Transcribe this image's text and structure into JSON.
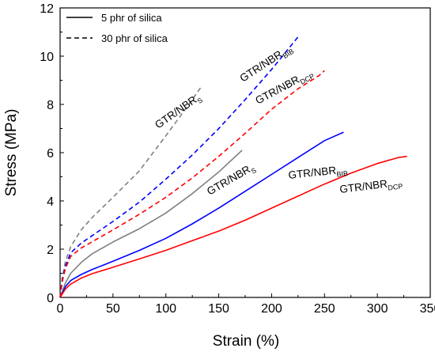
{
  "chart_data": {
    "type": "line",
    "title": "",
    "xlabel": "Strain (%)",
    "ylabel": "Stress (MPa)",
    "xlim": [
      0,
      350
    ],
    "ylim": [
      0,
      12
    ],
    "x_ticks": [
      "0",
      "50",
      "100",
      "150",
      "200",
      "250",
      "300",
      "350"
    ],
    "y_ticks": [
      "0",
      "2",
      "4",
      "6",
      "8",
      "10",
      "12"
    ],
    "grid": false,
    "legend_position": "top-left",
    "legend": [
      {
        "label": "5 phr of silica",
        "linestyle": "solid"
      },
      {
        "label": "30 phr of silica",
        "linestyle": "dashed"
      }
    ],
    "annotations": [
      {
        "base": "GTR/NBR",
        "sub": "S",
        "series": "solid-gray"
      },
      {
        "base": "GTR/NBR",
        "sub": "BIB",
        "series": "solid-blue"
      },
      {
        "base": "GTR/NBR",
        "sub": "DCP",
        "series": "solid-red"
      },
      {
        "base": "GTR/NBR",
        "sub": "S",
        "series": "dashed-gray"
      },
      {
        "base": "GTR/NBR",
        "sub": "BIB",
        "series": "dashed-blue"
      },
      {
        "base": "GTR/NBR",
        "sub": "DCP",
        "series": "dashed-red"
      }
    ],
    "series": [
      {
        "id": "solid-gray",
        "color": "#808080",
        "linestyle": "solid",
        "x": [
          0,
          5,
          10,
          20,
          30,
          50,
          75,
          100,
          125,
          150,
          172
        ],
        "y": [
          0,
          0.6,
          1.0,
          1.45,
          1.8,
          2.3,
          2.85,
          3.5,
          4.3,
          5.2,
          6.1
        ]
      },
      {
        "id": "solid-blue",
        "color": "#0000ff",
        "linestyle": "solid",
        "x": [
          0,
          5,
          10,
          20,
          30,
          50,
          75,
          100,
          125,
          150,
          175,
          200,
          225,
          250,
          268
        ],
        "y": [
          0,
          0.45,
          0.7,
          0.95,
          1.15,
          1.5,
          1.95,
          2.45,
          3.05,
          3.7,
          4.4,
          5.1,
          5.8,
          6.5,
          6.85
        ]
      },
      {
        "id": "solid-red",
        "color": "#ff0000",
        "linestyle": "solid",
        "x": [
          0,
          5,
          10,
          20,
          30,
          50,
          75,
          100,
          125,
          150,
          175,
          200,
          225,
          250,
          275,
          300,
          320,
          328
        ],
        "y": [
          0,
          0.35,
          0.55,
          0.8,
          0.98,
          1.25,
          1.6,
          1.95,
          2.35,
          2.75,
          3.2,
          3.7,
          4.2,
          4.7,
          5.15,
          5.55,
          5.8,
          5.85
        ]
      },
      {
        "id": "dashed-gray",
        "color": "#808080",
        "linestyle": "dashed",
        "x": [
          0,
          2,
          5,
          10,
          20,
          30,
          50,
          75,
          100,
          120,
          133
        ],
        "y": [
          0,
          0.8,
          1.5,
          2.1,
          2.8,
          3.3,
          4.15,
          5.25,
          6.7,
          7.9,
          8.7
        ]
      },
      {
        "id": "dashed-blue",
        "color": "#0000ff",
        "linestyle": "dashed",
        "x": [
          0,
          2,
          5,
          10,
          20,
          30,
          50,
          75,
          100,
          125,
          150,
          175,
          200,
          225
        ],
        "y": [
          0,
          0.7,
          1.3,
          1.85,
          2.25,
          2.55,
          3.15,
          3.95,
          4.9,
          5.9,
          7.0,
          8.2,
          9.45,
          10.8
        ]
      },
      {
        "id": "dashed-red",
        "color": "#ff0000",
        "linestyle": "dashed",
        "x": [
          0,
          2,
          5,
          10,
          20,
          30,
          50,
          75,
          100,
          125,
          150,
          175,
          200,
          225,
          245,
          250
        ],
        "y": [
          0,
          0.65,
          1.2,
          1.7,
          2.05,
          2.3,
          2.8,
          3.45,
          4.15,
          4.95,
          5.85,
          6.8,
          7.8,
          8.65,
          9.2,
          9.4
        ]
      }
    ]
  }
}
